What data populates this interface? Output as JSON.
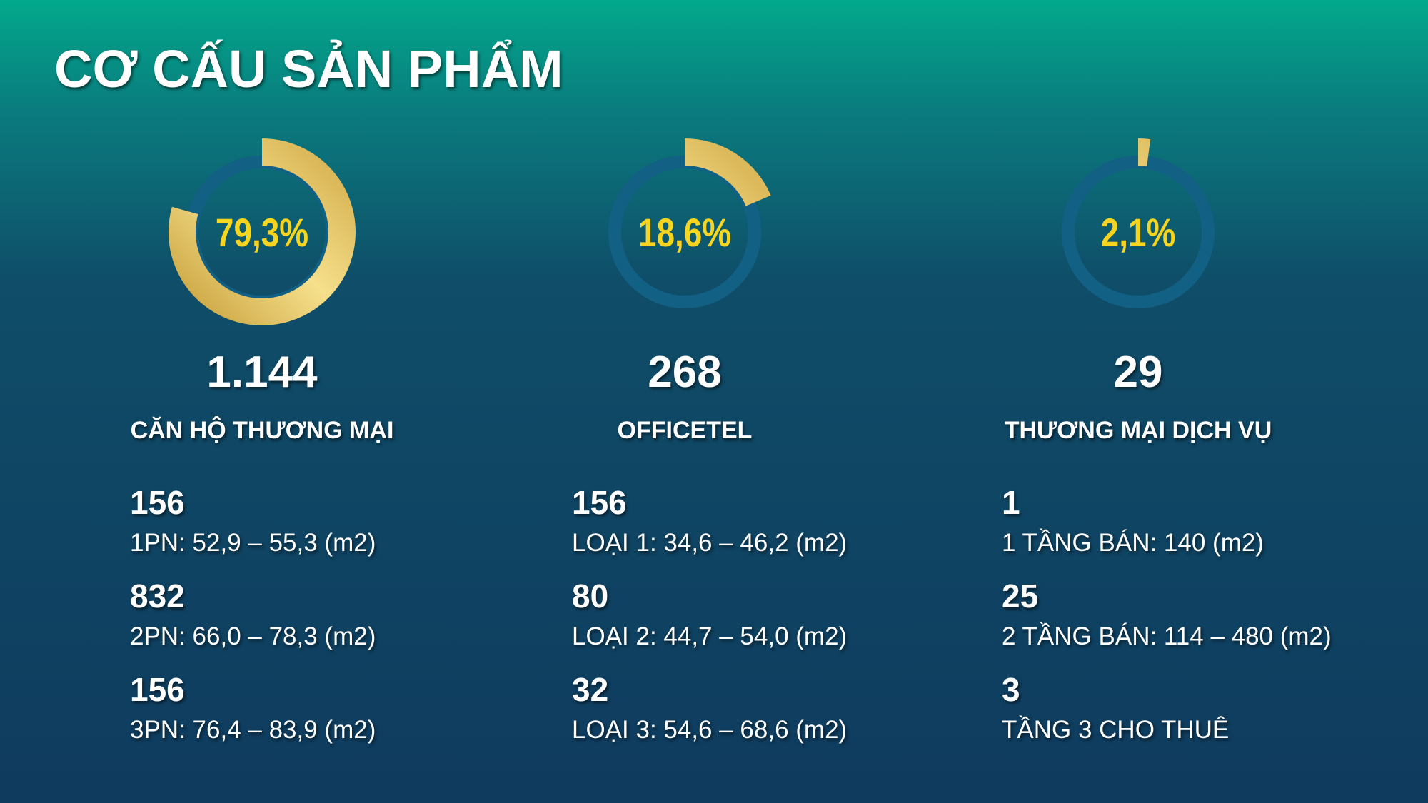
{
  "title": "CƠ CẤU SẢN PHẨM",
  "columns": [
    {
      "percent": {
        "value": 79.3,
        "label": "79,3%"
      },
      "total": "1.144",
      "name": "CĂN HỘ THƯƠNG MẠI",
      "items": [
        {
          "count": 156,
          "desc": "1PN: 52,9 – 55,3 (m2)"
        },
        {
          "count": 832,
          "desc": "2PN: 66,0 – 78,3 (m2)"
        },
        {
          "count": 156,
          "desc": "3PN: 76,4 – 83,9 (m2)"
        }
      ]
    },
    {
      "percent": {
        "value": 18.6,
        "label": "18,6%"
      },
      "total": "268",
      "name": "OFFICETEL",
      "items": [
        {
          "count": 156,
          "desc": "LOẠI 1: 34,6 – 46,2 (m2)"
        },
        {
          "count": 80,
          "desc": "LOẠI 2: 44,7 – 54,0 (m2)"
        },
        {
          "count": 32,
          "desc": "LOẠI 3: 54,6 – 68,6 (m2)"
        }
      ]
    },
    {
      "percent": {
        "value": 2.1,
        "label": "2,1%"
      },
      "total": "29",
      "name": "THƯƠNG MẠI DỊCH VỤ",
      "items": [
        {
          "count": 1,
          "desc": "1 TẦNG BÁN: 140 (m2)"
        },
        {
          "count": 25,
          "desc": "2 TẦNG BÁN: 114 – 480 (m2)"
        },
        {
          "count": 3,
          "desc": "TẦNG 3 CHO THUÊ"
        }
      ]
    }
  ]
}
